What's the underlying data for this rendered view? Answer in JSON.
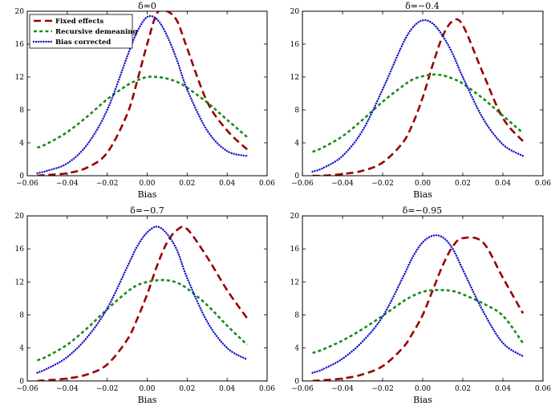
{
  "figure": {
    "xlabel": "Bias",
    "xlim": [
      -0.06,
      0.06
    ],
    "ylim": [
      0,
      20
    ],
    "x_ticks": [
      -0.06,
      -0.04,
      -0.02,
      0,
      0.02,
      0.04,
      0.06
    ],
    "x_tick_labels": [
      "−0.06",
      "−0.04",
      "−0.02",
      "0.00",
      "0.02",
      "0.04",
      "0.06"
    ],
    "y_ticks": [
      0,
      4,
      8,
      12,
      16,
      20
    ],
    "y_tick_labels": [
      "0",
      "4",
      "8",
      "12",
      "16",
      "20"
    ],
    "background": "#ffffff",
    "axis_color": "#000000",
    "grid": "off",
    "layout": "2x2"
  },
  "legend": {
    "position": "top-left of first subplot",
    "entries": [
      "Fixed effects",
      "Recursive demeaning",
      "Bias corrected"
    ]
  },
  "series_style": [
    {
      "name": "Fixed effects",
      "color": "#990000",
      "dash": "9 5",
      "width": 2.6,
      "linecap": "butt"
    },
    {
      "name": "Recursive demeaning",
      "color": "#1a8a1a",
      "dash": "4 3.2",
      "width": 2.6,
      "linecap": "butt"
    },
    {
      "name": "Bias corrected",
      "color": "#1212cc",
      "dash": "0.1 3",
      "width": 2.4,
      "linecap": "round"
    }
  ],
  "chart_data": [
    {
      "type": "line",
      "title": "δ=0",
      "xlabel": "Bias",
      "xlim": [
        -0.06,
        0.06
      ],
      "ylim": [
        0,
        20
      ],
      "x": [
        -0.055,
        -0.05,
        -0.04,
        -0.03,
        -0.02,
        -0.01,
        -0.005,
        0,
        0.005,
        0.01,
        0.015,
        0.02,
        0.03,
        0.04,
        0.05
      ],
      "series": [
        {
          "name": "Fixed effects",
          "values": [
            0,
            0.1,
            0.3,
            1.0,
            2.8,
            7.5,
            11.5,
            16.0,
            19.8,
            20.0,
            18.8,
            15.5,
            9.0,
            5.5,
            3.2
          ]
        },
        {
          "name": "Recursive demeaning",
          "values": [
            3.4,
            3.9,
            5.3,
            7.2,
            9.3,
            11.0,
            11.6,
            12.0,
            12.0,
            11.8,
            11.4,
            10.7,
            8.9,
            6.8,
            4.7
          ]
        },
        {
          "name": "Bias corrected",
          "values": [
            0.3,
            0.6,
            1.5,
            3.8,
            8.0,
            14.5,
            17.5,
            19.3,
            19.0,
            17.0,
            14.0,
            10.5,
            5.5,
            3.0,
            2.4
          ]
        }
      ]
    },
    {
      "type": "line",
      "title": "δ=−0.4",
      "xlabel": "Bias",
      "xlim": [
        -0.06,
        0.06
      ],
      "ylim": [
        0,
        20
      ],
      "x": [
        -0.055,
        -0.05,
        -0.04,
        -0.03,
        -0.02,
        -0.01,
        -0.005,
        0,
        0.005,
        0.01,
        0.015,
        0.02,
        0.03,
        0.04,
        0.05
      ],
      "series": [
        {
          "name": "Fixed effects",
          "values": [
            0,
            0,
            0.2,
            0.6,
            1.6,
            4.0,
            6.3,
            9.5,
            13.5,
            17.0,
            18.8,
            18.3,
            12.5,
            7.0,
            4.2
          ]
        },
        {
          "name": "Recursive demeaning",
          "values": [
            2.9,
            3.4,
            4.8,
            6.8,
            9.0,
            10.9,
            11.7,
            12.1,
            12.3,
            12.2,
            11.8,
            11.2,
            9.4,
            7.3,
            5.2
          ]
        },
        {
          "name": "Bias corrected",
          "values": [
            0.5,
            0.9,
            2.4,
            5.5,
            10.5,
            16.0,
            18.0,
            18.9,
            18.5,
            17.0,
            14.8,
            12.0,
            7.0,
            3.8,
            2.4
          ]
        }
      ]
    },
    {
      "type": "line",
      "title": "δ=−0.7",
      "xlabel": "Bias",
      "xlim": [
        -0.06,
        0.06
      ],
      "ylim": [
        0,
        20
      ],
      "x": [
        -0.055,
        -0.05,
        -0.04,
        -0.03,
        -0.02,
        -0.01,
        -0.005,
        0,
        0.005,
        0.01,
        0.015,
        0.02,
        0.03,
        0.04,
        0.05
      ],
      "series": [
        {
          "name": "Fixed effects",
          "values": [
            0,
            0.1,
            0.3,
            0.8,
            2.0,
            5.0,
            7.5,
            10.5,
            14.0,
            16.8,
            18.3,
            18.4,
            15.0,
            11.0,
            7.6
          ]
        },
        {
          "name": "Recursive demeaning",
          "values": [
            2.5,
            3.0,
            4.4,
            6.4,
            8.7,
            10.8,
            11.6,
            12.0,
            12.2,
            12.2,
            11.9,
            11.2,
            9.2,
            6.7,
            4.4
          ]
        },
        {
          "name": "Bias corrected",
          "values": [
            1.0,
            1.5,
            2.9,
            5.3,
            8.8,
            13.8,
            16.3,
            18.0,
            18.7,
            17.8,
            15.8,
            12.5,
            7.2,
            4.0,
            2.6
          ]
        }
      ]
    },
    {
      "type": "line",
      "title": "δ=−0.95",
      "xlabel": "Bias",
      "xlim": [
        -0.06,
        0.06
      ],
      "ylim": [
        0,
        20
      ],
      "x": [
        -0.055,
        -0.05,
        -0.04,
        -0.03,
        -0.02,
        -0.01,
        -0.005,
        0,
        0.005,
        0.01,
        0.015,
        0.02,
        0.03,
        0.04,
        0.05
      ],
      "series": [
        {
          "name": "Fixed effects",
          "values": [
            0,
            0.1,
            0.3,
            0.8,
            1.8,
            4.0,
            5.8,
            8.0,
            11.0,
            14.0,
            16.3,
            17.3,
            16.8,
            12.5,
            8.2
          ]
        },
        {
          "name": "Recursive demeaning",
          "values": [
            3.4,
            3.8,
            4.9,
            6.3,
            7.9,
            9.6,
            10.3,
            10.8,
            11.0,
            11.0,
            10.9,
            10.5,
            9.4,
            7.9,
            4.6
          ]
        },
        {
          "name": "Bias corrected",
          "values": [
            1.0,
            1.4,
            2.7,
            4.8,
            7.8,
            12.5,
            15.0,
            16.8,
            17.6,
            17.4,
            16.0,
            13.5,
            8.5,
            4.6,
            3.0
          ]
        }
      ]
    }
  ]
}
